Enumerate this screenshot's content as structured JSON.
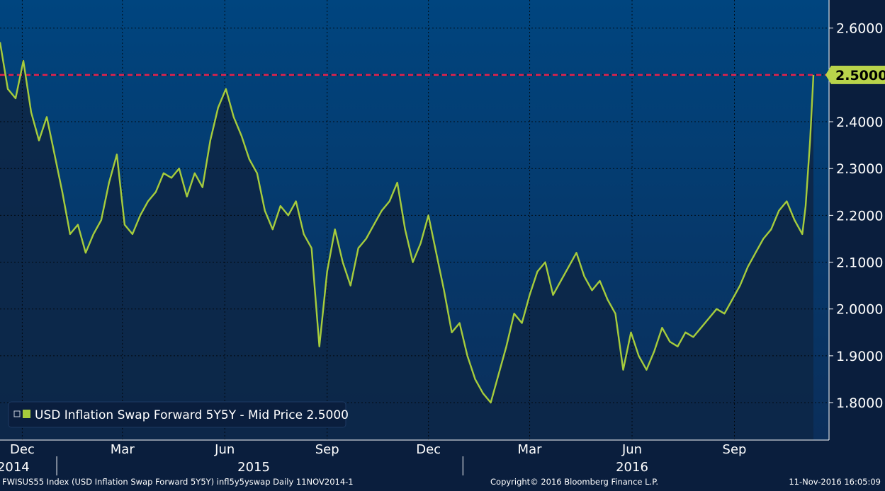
{
  "colors": {
    "plot_bg_top": "#00457f",
    "plot_bg_bottom": "#0b2e5a",
    "area_fill": "#0d2748",
    "line": "#a6cc3c",
    "grid": "#000000",
    "ref_line": "#e8204a",
    "axis_bg": "#0a1e3d",
    "last_label_bg": "#b9d44b"
  },
  "chart_data": {
    "type": "line",
    "series": [
      {
        "name": "USD Inflation Swap Forward 5Y5Y - Mid Price 2.5000",
        "x": [
          "2014-11-11",
          "2014-11-18",
          "2014-11-25",
          "2014-12-02",
          "2014-12-09",
          "2014-12-16",
          "2014-12-23",
          "2014-12-30",
          "2015-01-06",
          "2015-01-13",
          "2015-01-20",
          "2015-01-27",
          "2015-02-03",
          "2015-02-10",
          "2015-02-17",
          "2015-02-24",
          "2015-03-03",
          "2015-03-10",
          "2015-03-17",
          "2015-03-24",
          "2015-03-31",
          "2015-04-07",
          "2015-04-14",
          "2015-04-21",
          "2015-04-28",
          "2015-05-05",
          "2015-05-12",
          "2015-05-19",
          "2015-05-26",
          "2015-06-02",
          "2015-06-09",
          "2015-06-16",
          "2015-06-23",
          "2015-06-30",
          "2015-07-07",
          "2015-07-14",
          "2015-07-21",
          "2015-07-28",
          "2015-08-04",
          "2015-08-11",
          "2015-08-18",
          "2015-08-25",
          "2015-09-01",
          "2015-09-08",
          "2015-09-15",
          "2015-09-22",
          "2015-09-29",
          "2015-10-06",
          "2015-10-13",
          "2015-10-20",
          "2015-10-27",
          "2015-11-03",
          "2015-11-10",
          "2015-11-17",
          "2015-11-24",
          "2015-12-01",
          "2015-12-08",
          "2015-12-15",
          "2015-12-22",
          "2015-12-29",
          "2016-01-05",
          "2016-01-12",
          "2016-01-19",
          "2016-01-26",
          "2016-02-02",
          "2016-02-09",
          "2016-02-16",
          "2016-02-23",
          "2016-03-01",
          "2016-03-08",
          "2016-03-15",
          "2016-03-22",
          "2016-03-29",
          "2016-04-05",
          "2016-04-12",
          "2016-04-19",
          "2016-04-26",
          "2016-05-03",
          "2016-05-10",
          "2016-05-17",
          "2016-05-24",
          "2016-05-31",
          "2016-06-07",
          "2016-06-14",
          "2016-06-21",
          "2016-06-28",
          "2016-07-05",
          "2016-07-12",
          "2016-07-19",
          "2016-07-26",
          "2016-08-02",
          "2016-08-09",
          "2016-08-16",
          "2016-08-23",
          "2016-08-30",
          "2016-09-06",
          "2016-09-13",
          "2016-09-20",
          "2016-09-27",
          "2016-10-04",
          "2016-10-11",
          "2016-10-18",
          "2016-10-25",
          "2016-11-01",
          "2016-11-04",
          "2016-11-08",
          "2016-11-11"
        ],
        "values": [
          2.57,
          2.47,
          2.45,
          2.53,
          2.42,
          2.36,
          2.41,
          2.33,
          2.25,
          2.16,
          2.18,
          2.12,
          2.16,
          2.19,
          2.27,
          2.33,
          2.18,
          2.16,
          2.2,
          2.23,
          2.25,
          2.29,
          2.28,
          2.3,
          2.24,
          2.29,
          2.26,
          2.36,
          2.43,
          2.47,
          2.41,
          2.37,
          2.32,
          2.29,
          2.21,
          2.17,
          2.22,
          2.2,
          2.23,
          2.16,
          2.13,
          1.92,
          2.08,
          2.17,
          2.1,
          2.05,
          2.13,
          2.15,
          2.18,
          2.21,
          2.23,
          2.27,
          2.17,
          2.1,
          2.14,
          2.2,
          2.12,
          2.04,
          1.95,
          1.97,
          1.9,
          1.85,
          1.82,
          1.8,
          1.86,
          1.92,
          1.99,
          1.97,
          2.03,
          2.08,
          2.1,
          2.03,
          2.06,
          2.09,
          2.12,
          2.07,
          2.04,
          2.06,
          2.02,
          1.99,
          1.87,
          1.95,
          1.9,
          1.87,
          1.91,
          1.96,
          1.93,
          1.92,
          1.95,
          1.94,
          1.96,
          1.98,
          2.0,
          1.99,
          2.02,
          2.05,
          2.09,
          2.12,
          2.15,
          2.17,
          2.21,
          2.23,
          2.19,
          2.16,
          2.22,
          2.36,
          2.5
        ]
      }
    ],
    "ylim": [
      1.72,
      2.66
    ],
    "yticks": [
      "1.8000",
      "1.9000",
      "2.0000",
      "2.1000",
      "2.2000",
      "2.3000",
      "2.4000",
      "2.5000",
      "2.6000"
    ],
    "ytick_values": [
      1.8,
      1.9,
      2.0,
      2.1,
      2.2,
      2.3,
      2.4,
      2.5,
      2.6
    ],
    "xlim": [
      "2014-11-11",
      "2016-11-25"
    ],
    "xticks": [
      {
        "date": "2014-12-01",
        "label": "Dec"
      },
      {
        "date": "2015-03-01",
        "label": "Mar"
      },
      {
        "date": "2015-06-01",
        "label": "Jun"
      },
      {
        "date": "2015-09-01",
        "label": "Sep"
      },
      {
        "date": "2015-12-01",
        "label": "Dec"
      },
      {
        "date": "2016-03-01",
        "label": "Mar"
      },
      {
        "date": "2016-06-01",
        "label": "Jun"
      },
      {
        "date": "2016-09-01",
        "label": "Sep"
      }
    ],
    "years": [
      {
        "date": "2014-11-23",
        "label": "2014"
      },
      {
        "date": "2015-06-27",
        "label": "2015"
      },
      {
        "date": "2016-06-01",
        "label": "2016"
      }
    ],
    "year_separators": [
      "2015-01-01",
      "2016-01-01"
    ],
    "reference_line": 2.5,
    "last_value_label": "2.5000",
    "grid": true,
    "legend_position": "bottom-left"
  },
  "legend": {
    "label": "USD Inflation Swap Forward 5Y5Y - Mid Price 2.5000"
  },
  "footer": {
    "left": "FWISUS55 Index (USD Inflation Swap Forward 5Y5Y) infl5y5yswap  Daily 11NOV2014-1",
    "center": "Copyright© 2016 Bloomberg Finance L.P.",
    "right": "11-Nov-2016 16:05:09"
  }
}
